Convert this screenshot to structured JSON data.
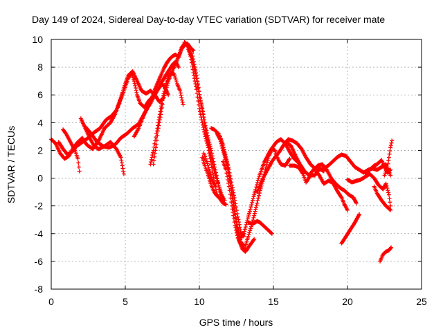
{
  "chart_data": {
    "type": "scatter",
    "title": "Day 149 of 2024, Sidereal Day-to-day VTEC variation (SDTVAR) for receiver mate",
    "xlabel": "GPS time / hours",
    "ylabel": "SDTVAR / TECUs",
    "xlim": [
      0,
      25
    ],
    "ylim": [
      -8,
      10
    ],
    "x_ticks": [
      0,
      5,
      10,
      15,
      20,
      25
    ],
    "y_ticks": [
      -8,
      -6,
      -4,
      -2,
      0,
      2,
      4,
      6,
      8,
      10
    ],
    "grid": true,
    "marker": "+",
    "series_color": "#ff0000",
    "tracks": [
      [
        [
          0.0,
          2.8
        ],
        [
          0.3,
          2.5
        ],
        [
          0.6,
          1.8
        ],
        [
          0.9,
          1.4
        ],
        [
          1.2,
          1.6
        ],
        [
          1.5,
          2.2
        ],
        [
          1.8,
          2.6
        ],
        [
          2.1,
          2.9
        ],
        [
          2.4,
          2.4
        ],
        [
          2.8,
          2.1
        ],
        [
          3.2,
          2.7
        ],
        [
          3.6,
          3.6
        ],
        [
          4.0,
          4.0
        ],
        [
          4.3,
          4.6
        ],
        [
          4.6,
          5.4
        ],
        [
          4.9,
          6.3
        ],
        [
          5.2,
          7.2
        ],
        [
          5.4,
          7.6
        ],
        [
          5.6,
          7.0
        ],
        [
          5.8,
          6.0
        ],
        [
          6.0,
          5.4
        ],
        [
          6.3,
          5.1
        ],
        [
          6.6,
          5.6
        ],
        [
          6.9,
          5.9
        ],
        [
          7.2,
          6.4
        ],
        [
          7.5,
          6.8
        ],
        [
          7.7,
          6.5
        ],
        [
          7.9,
          6.0
        ]
      ],
      [
        [
          0.5,
          2.6
        ],
        [
          0.8,
          2.1
        ],
        [
          1.1,
          1.7
        ],
        [
          1.4,
          1.9
        ],
        [
          1.7,
          2.3
        ],
        [
          2.1,
          2.6
        ],
        [
          2.5,
          2.9
        ],
        [
          2.9,
          3.3
        ],
        [
          3.3,
          3.6
        ],
        [
          3.7,
          4.2
        ],
        [
          4.1,
          4.5
        ],
        [
          4.4,
          4.9
        ],
        [
          4.7,
          5.8
        ],
        [
          5.0,
          6.8
        ],
        [
          5.2,
          7.4
        ],
        [
          5.5,
          7.7
        ],
        [
          5.8,
          7.0
        ],
        [
          6.1,
          6.3
        ],
        [
          6.4,
          6.1
        ],
        [
          6.7,
          6.3
        ],
        [
          7.0,
          6.0
        ],
        [
          7.3,
          5.5
        ],
        [
          7.6,
          5.8
        ],
        [
          7.9,
          7.0
        ],
        [
          8.2,
          7.8
        ],
        [
          8.5,
          8.5
        ],
        [
          8.8,
          9.4
        ],
        [
          9.0,
          9.7
        ],
        [
          9.3,
          9.5
        ],
        [
          9.6,
          9.2
        ]
      ],
      [
        [
          0.8,
          3.5
        ],
        [
          1.0,
          3.2
        ],
        [
          1.3,
          2.6
        ],
        [
          1.6,
          2.0
        ],
        [
          1.8,
          1.4
        ],
        [
          1.9,
          0.5
        ]
      ],
      [
        [
          2.0,
          4.3
        ],
        [
          2.3,
          3.6
        ],
        [
          2.6,
          2.9
        ],
        [
          2.9,
          2.3
        ],
        [
          3.2,
          2.1
        ],
        [
          3.6,
          2.3
        ],
        [
          4.0,
          2.6
        ],
        [
          4.4,
          2.1
        ],
        [
          4.7,
          1.5
        ],
        [
          4.8,
          0.9
        ],
        [
          4.9,
          0.3
        ]
      ],
      [
        [
          2.3,
          3.7
        ],
        [
          2.7,
          3.2
        ],
        [
          3.1,
          2.6
        ],
        [
          3.5,
          2.3
        ],
        [
          3.9,
          2.2
        ],
        [
          4.3,
          2.4
        ],
        [
          4.7,
          2.9
        ],
        [
          5.1,
          3.2
        ],
        [
          5.5,
          3.6
        ],
        [
          5.9,
          3.9
        ],
        [
          6.3,
          4.7
        ],
        [
          6.7,
          5.4
        ],
        [
          7.1,
          6.2
        ],
        [
          7.5,
          7.0
        ],
        [
          7.9,
          7.7
        ],
        [
          8.2,
          8.2
        ],
        [
          8.4,
          8.4
        ],
        [
          8.6,
          8.0
        ]
      ],
      [
        [
          5.6,
          3.0
        ],
        [
          5.9,
          3.6
        ],
        [
          6.2,
          4.4
        ],
        [
          6.5,
          5.1
        ],
        [
          6.8,
          5.8
        ],
        [
          7.0,
          6.4
        ],
        [
          7.2,
          6.9
        ],
        [
          7.4,
          7.4
        ],
        [
          7.6,
          7.9
        ],
        [
          7.8,
          8.3
        ],
        [
          8.0,
          8.6
        ],
        [
          8.2,
          8.8
        ],
        [
          8.4,
          8.9
        ],
        [
          8.6,
          8.7
        ],
        [
          8.8,
          9.3
        ],
        [
          9.0,
          9.6
        ],
        [
          9.2,
          9.7
        ],
        [
          9.4,
          9.4
        ]
      ],
      [
        [
          6.7,
          1.0
        ],
        [
          6.9,
          2.0
        ],
        [
          7.1,
          3.2
        ],
        [
          7.3,
          4.4
        ],
        [
          7.5,
          5.6
        ],
        [
          7.7,
          6.6
        ],
        [
          7.9,
          7.3
        ],
        [
          8.1,
          7.6
        ],
        [
          8.3,
          7.5
        ],
        [
          8.5,
          6.8
        ],
        [
          8.7,
          6.3
        ],
        [
          8.9,
          5.3
        ]
      ],
      [
        [
          6.9,
          1.0
        ],
        [
          7.0,
          1.8
        ],
        [
          7.1,
          2.4
        ],
        [
          7.2,
          3.4
        ],
        [
          7.3,
          4.0
        ],
        [
          7.4,
          4.6
        ],
        [
          7.5,
          5.3
        ]
      ],
      [
        [
          9.0,
          9.8
        ],
        [
          9.2,
          9.6
        ],
        [
          9.4,
          9.0
        ],
        [
          9.6,
          8.2
        ],
        [
          9.8,
          7.2
        ],
        [
          10.0,
          6.0
        ],
        [
          10.2,
          5.0
        ],
        [
          10.4,
          3.8
        ],
        [
          10.6,
          2.9
        ],
        [
          10.8,
          2.0
        ],
        [
          11.0,
          1.0
        ],
        [
          11.2,
          0.0
        ],
        [
          11.4,
          -1.0
        ],
        [
          11.6,
          -1.8
        ]
      ],
      [
        [
          9.2,
          9.5
        ],
        [
          9.4,
          8.8
        ],
        [
          9.6,
          7.6
        ],
        [
          9.8,
          6.4
        ],
        [
          10.0,
          5.0
        ],
        [
          10.2,
          4.0
        ],
        [
          10.4,
          3.0
        ],
        [
          10.6,
          2.2
        ],
        [
          10.8,
          1.0
        ],
        [
          11.0,
          -0.2
        ],
        [
          11.2,
          -1.2
        ],
        [
          11.4,
          -1.5
        ],
        [
          11.6,
          -1.8
        ],
        [
          11.8,
          -1.9
        ]
      ],
      [
        [
          9.5,
          9.0
        ],
        [
          9.7,
          8.0
        ],
        [
          9.9,
          6.8
        ],
        [
          10.1,
          5.5
        ],
        [
          10.3,
          4.2
        ],
        [
          10.5,
          3.0
        ],
        [
          10.7,
          2.0
        ],
        [
          10.9,
          1.0
        ],
        [
          11.1,
          0.2
        ],
        [
          11.3,
          -0.5
        ],
        [
          11.5,
          -1.2
        ],
        [
          11.7,
          -1.6
        ]
      ],
      [
        [
          10.2,
          1.5
        ],
        [
          10.4,
          0.8
        ],
        [
          10.6,
          0.2
        ],
        [
          10.8,
          -0.5
        ],
        [
          11.0,
          -1.0
        ],
        [
          11.2,
          -1.3
        ]
      ],
      [
        [
          10.3,
          1.8
        ],
        [
          10.5,
          1.2
        ],
        [
          10.7,
          0.5
        ],
        [
          10.9,
          -0.2
        ],
        [
          11.1,
          -0.6
        ]
      ],
      [
        [
          10.8,
          3.6
        ],
        [
          11.0,
          3.5
        ],
        [
          11.3,
          3.2
        ],
        [
          11.6,
          2.4
        ],
        [
          11.9,
          1.0
        ],
        [
          12.1,
          -0.5
        ],
        [
          12.3,
          -2.0
        ],
        [
          12.5,
          -3.4
        ],
        [
          12.7,
          -4.5
        ],
        [
          12.9,
          -5.1
        ],
        [
          13.1,
          -5.3
        ],
        [
          13.3,
          -5.0
        ],
        [
          13.5,
          -4.7
        ],
        [
          13.7,
          -4.4
        ]
      ],
      [
        [
          11.2,
          3.2
        ],
        [
          11.4,
          2.8
        ],
        [
          11.6,
          2.0
        ],
        [
          11.8,
          1.2
        ],
        [
          12.0,
          0.2
        ],
        [
          12.2,
          -1.0
        ],
        [
          12.4,
          -2.4
        ],
        [
          12.6,
          -3.6
        ],
        [
          12.8,
          -4.6
        ],
        [
          13.0,
          -4.9
        ]
      ],
      [
        [
          11.4,
          3.0
        ],
        [
          11.6,
          2.2
        ],
        [
          11.8,
          1.4
        ],
        [
          12.0,
          0.6
        ],
        [
          12.2,
          -0.5
        ],
        [
          12.4,
          -1.6
        ],
        [
          12.6,
          -2.8
        ],
        [
          12.8,
          -3.9
        ],
        [
          13.0,
          -4.2
        ]
      ],
      [
        [
          11.6,
          1.2
        ],
        [
          11.8,
          0.6
        ],
        [
          12.0,
          -0.6
        ],
        [
          12.2,
          -2.0
        ],
        [
          12.4,
          -3.4
        ],
        [
          12.6,
          -4.3
        ],
        [
          12.8,
          -4.8
        ],
        [
          13.0,
          -5.1
        ],
        [
          13.2,
          -5.2
        ]
      ],
      [
        [
          12.8,
          -4.3
        ],
        [
          13.0,
          -4.0
        ],
        [
          13.2,
          -3.2
        ],
        [
          13.4,
          -2.4
        ],
        [
          13.6,
          -1.6
        ],
        [
          13.8,
          -0.8
        ],
        [
          14.0,
          0.0
        ],
        [
          14.2,
          0.6
        ],
        [
          14.4,
          1.2
        ],
        [
          14.6,
          1.6
        ],
        [
          14.8,
          2.0
        ],
        [
          15.0,
          2.3
        ],
        [
          15.2,
          2.6
        ],
        [
          15.5,
          2.8
        ],
        [
          15.8,
          2.5
        ],
        [
          16.1,
          1.9
        ],
        [
          16.4,
          1.4
        ],
        [
          16.7,
          1.1
        ]
      ],
      [
        [
          13.1,
          -4.9
        ],
        [
          13.3,
          -4.2
        ],
        [
          13.5,
          -3.5
        ],
        [
          13.7,
          -2.7
        ],
        [
          13.9,
          -1.8
        ],
        [
          14.1,
          -0.9
        ],
        [
          14.3,
          -0.1
        ],
        [
          14.5,
          0.8
        ],
        [
          14.7,
          1.6
        ],
        [
          14.9,
          2.1
        ],
        [
          15.1,
          2.0
        ],
        [
          15.3,
          1.4
        ],
        [
          15.5,
          1.0
        ],
        [
          15.8,
          0.9
        ],
        [
          16.1,
          1.4
        ]
      ],
      [
        [
          13.3,
          -3.2
        ],
        [
          13.6,
          -3.3
        ],
        [
          13.9,
          -3.1
        ],
        [
          14.1,
          -3.2
        ],
        [
          14.4,
          -3.5
        ],
        [
          14.7,
          -3.8
        ],
        [
          14.9,
          -4.0
        ]
      ],
      [
        [
          13.9,
          -1.0
        ],
        [
          14.1,
          -0.5
        ],
        [
          14.3,
          0.0
        ],
        [
          14.5,
          0.4
        ],
        [
          14.7,
          0.8
        ],
        [
          14.9,
          1.2
        ],
        [
          15.1,
          1.5
        ],
        [
          15.4,
          1.9
        ],
        [
          15.7,
          2.4
        ],
        [
          16.0,
          2.8
        ],
        [
          16.3,
          2.7
        ],
        [
          16.6,
          2.5
        ],
        [
          16.9,
          2.1
        ],
        [
          17.2,
          1.5
        ],
        [
          17.5,
          1.0
        ],
        [
          17.8,
          0.7
        ],
        [
          18.1,
          0.6
        ],
        [
          18.4,
          0.7
        ],
        [
          18.7,
          0.9
        ],
        [
          19.0,
          1.2
        ],
        [
          19.3,
          1.5
        ],
        [
          19.6,
          1.7
        ],
        [
          19.9,
          1.6
        ],
        [
          20.2,
          1.2
        ],
        [
          20.5,
          0.8
        ],
        [
          20.8,
          0.6
        ],
        [
          21.1,
          0.4
        ],
        [
          21.4,
          0.6
        ],
        [
          21.7,
          0.7
        ],
        [
          22.0,
          0.6
        ],
        [
          22.3,
          0.8
        ],
        [
          22.6,
          1.0
        ],
        [
          22.9,
          0.2
        ]
      ],
      [
        [
          15.9,
          2.6
        ],
        [
          16.2,
          2.3
        ],
        [
          16.5,
          1.6
        ],
        [
          16.8,
          1.0
        ],
        [
          17.1,
          0.5
        ],
        [
          17.4,
          0.2
        ],
        [
          17.7,
          0.6
        ],
        [
          18.0,
          0.9
        ],
        [
          18.3,
          1.0
        ],
        [
          18.6,
          0.6
        ],
        [
          18.9,
          0.0
        ],
        [
          19.2,
          -0.4
        ],
        [
          19.5,
          -0.7
        ],
        [
          19.8,
          -0.9
        ],
        [
          20.1,
          -1.2
        ],
        [
          20.4,
          -1.4
        ],
        [
          20.6,
          -1.8
        ]
      ],
      [
        [
          16.1,
          0.9
        ],
        [
          16.4,
          0.9
        ],
        [
          16.7,
          0.8
        ],
        [
          17.0,
          0.3
        ],
        [
          17.2,
          -0.3
        ],
        [
          17.5,
          0.2
        ],
        [
          17.8,
          0.2
        ],
        [
          18.1,
          0.7
        ],
        [
          18.4,
          0.5
        ]
      ],
      [
        [
          17.8,
          0.6
        ],
        [
          18.1,
          0.2
        ],
        [
          18.4,
          -0.4
        ],
        [
          18.7,
          -0.2
        ],
        [
          19.0,
          -0.3
        ],
        [
          19.3,
          -0.9
        ],
        [
          19.6,
          -1.4
        ],
        [
          19.8,
          -1.9
        ],
        [
          20.0,
          -2.3
        ]
      ],
      [
        [
          19.6,
          -4.7
        ],
        [
          19.9,
          -4.2
        ],
        [
          20.2,
          -3.7
        ],
        [
          20.5,
          -3.2
        ],
        [
          20.8,
          -2.6
        ]
      ],
      [
        [
          20.0,
          -0.1
        ],
        [
          20.3,
          -0.3
        ],
        [
          20.6,
          -0.2
        ],
        [
          20.9,
          -0.1
        ],
        [
          21.2,
          0.1
        ],
        [
          21.5,
          0.3
        ],
        [
          21.8,
          0.0
        ],
        [
          22.1,
          -0.5
        ],
        [
          22.4,
          -0.8
        ],
        [
          22.6,
          -0.4
        ],
        [
          22.8,
          -1.2
        ],
        [
          22.9,
          -2.0
        ]
      ],
      [
        [
          21.2,
          0.3
        ],
        [
          21.5,
          0.6
        ],
        [
          21.8,
          0.9
        ],
        [
          22.0,
          1.0
        ],
        [
          22.3,
          1.3
        ],
        [
          22.5,
          0.8
        ],
        [
          22.7,
          0.4
        ],
        [
          22.9,
          0.6
        ]
      ],
      [
        [
          22.2,
          -6.0
        ],
        [
          22.4,
          -5.5
        ],
        [
          22.6,
          -5.3
        ],
        [
          22.8,
          -5.2
        ],
        [
          22.95,
          -5.0
        ]
      ],
      [
        [
          22.5,
          0.2
        ],
        [
          22.7,
          0.8
        ],
        [
          22.8,
          1.5
        ],
        [
          22.9,
          2.2
        ],
        [
          23.0,
          2.7
        ]
      ],
      [
        [
          21.8,
          -0.6
        ],
        [
          22.0,
          -1.1
        ],
        [
          22.3,
          -1.6
        ],
        [
          22.6,
          -2.0
        ],
        [
          22.9,
          -2.3
        ]
      ]
    ]
  }
}
